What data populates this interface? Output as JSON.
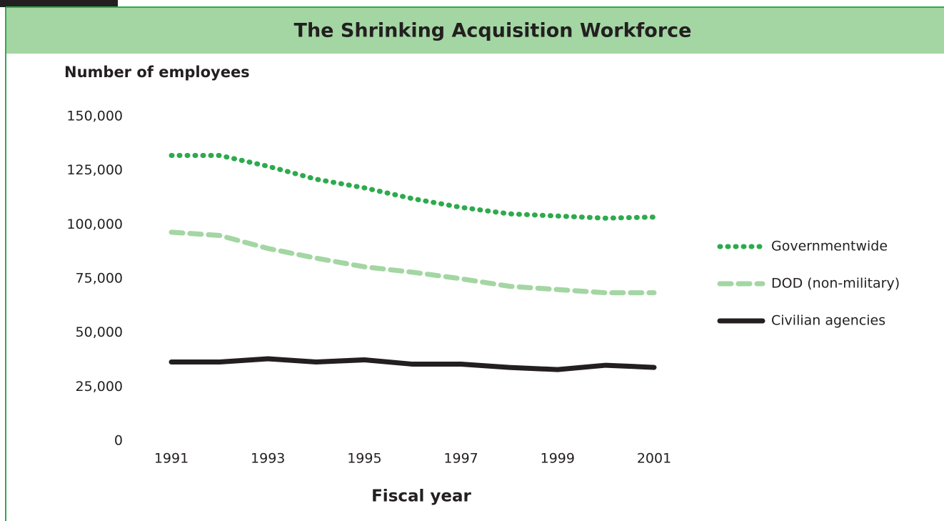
{
  "chart_data": {
    "type": "line",
    "title": "The Shrinking Acquisition Workforce",
    "y_label": "Number of employees",
    "x_label": "Fiscal year",
    "x": [
      1991,
      1992,
      1993,
      1994,
      1995,
      1996,
      1997,
      1998,
      1999,
      2000,
      2001
    ],
    "xlim": [
      1991,
      2001
    ],
    "xticks": [
      1991,
      1993,
      1995,
      1997,
      1999,
      2001
    ],
    "ylim": [
      0,
      150000
    ],
    "yticks": [
      0,
      {
        "value": 25000,
        "label": "25,000"
      },
      {
        "value": 50000,
        "label": "50,000"
      },
      {
        "value": 75000,
        "label": "75,000"
      },
      {
        "value": 100000,
        "label": "100,000"
      },
      {
        "value": 125000,
        "label": "125,000"
      },
      {
        "value": 150000,
        "label": "150,000"
      }
    ],
    "grid": false,
    "legend": "right",
    "series": [
      {
        "name": "Governmentwide",
        "color": "#2eaa4e",
        "style": "dotted",
        "values": [
          132000,
          132000,
          127000,
          121000,
          117000,
          112000,
          108000,
          105000,
          104000,
          103000,
          103500
        ]
      },
      {
        "name": "DOD (non-military)",
        "color": "#a3d6a3",
        "style": "dashed",
        "values": [
          96500,
          95000,
          89000,
          84500,
          80500,
          78000,
          75000,
          71500,
          70000,
          68500,
          68500
        ]
      },
      {
        "name": "Civilian agencies",
        "color": "#231f20",
        "style": "solid",
        "values": [
          36500,
          36500,
          38000,
          36500,
          37500,
          35500,
          35500,
          34000,
          33000,
          35000,
          34000
        ]
      }
    ]
  }
}
